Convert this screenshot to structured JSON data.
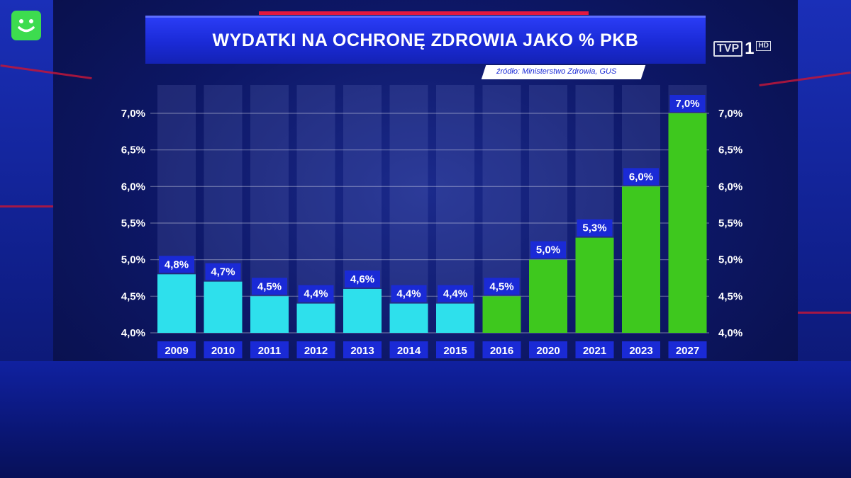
{
  "header": {
    "title": "WYDATKI NA OCHRONĘ ZDROWIA JAKO % PKB",
    "source": "źródło: Ministerstwo Zdrowia, GUS"
  },
  "logo": {
    "brand": "TVP",
    "channel": "1",
    "quality": "HD"
  },
  "colors": {
    "title_bar": "#1a2ad6",
    "bar_past": "#2ee0ec",
    "bar_future": "#3ec81e",
    "label_box": "#1a2ad6",
    "accent": "#e3183f",
    "badge": "#3ddc4f"
  },
  "icons": {
    "badge": "smiley-face-icon"
  },
  "chart_data": {
    "type": "bar",
    "title": "WYDATKI NA OCHRONĘ ZDROWIA JAKO % PKB",
    "categories": [
      "2009",
      "2010",
      "2011",
      "2012",
      "2013",
      "2014",
      "2015",
      "2016",
      "2020",
      "2021",
      "2023",
      "2027"
    ],
    "values": [
      4.8,
      4.7,
      4.5,
      4.4,
      4.6,
      4.4,
      4.4,
      4.5,
      5.0,
      5.3,
      6.0,
      7.0
    ],
    "value_labels": [
      "4,8%",
      "4,7%",
      "4,5%",
      "4,4%",
      "4,6%",
      "4,4%",
      "4,4%",
      "4,5%",
      "5,0%",
      "5,3%",
      "6,0%",
      "7,0%"
    ],
    "bar_colors": [
      "#2ee0ec",
      "#2ee0ec",
      "#2ee0ec",
      "#2ee0ec",
      "#2ee0ec",
      "#2ee0ec",
      "#2ee0ec",
      "#3ec81e",
      "#3ec81e",
      "#3ec81e",
      "#3ec81e",
      "#3ec81e"
    ],
    "ylim": [
      4.0,
      7.0
    ],
    "yticks": [
      4.0,
      4.5,
      5.0,
      5.5,
      6.0,
      6.5,
      7.0
    ],
    "ytick_labels": [
      "4,0%",
      "4,5%",
      "5,0%",
      "5,5%",
      "6,0%",
      "6,5%",
      "7,0%"
    ],
    "y_axis_sides": "both",
    "grid": true,
    "xlabel": "",
    "ylabel": ""
  }
}
